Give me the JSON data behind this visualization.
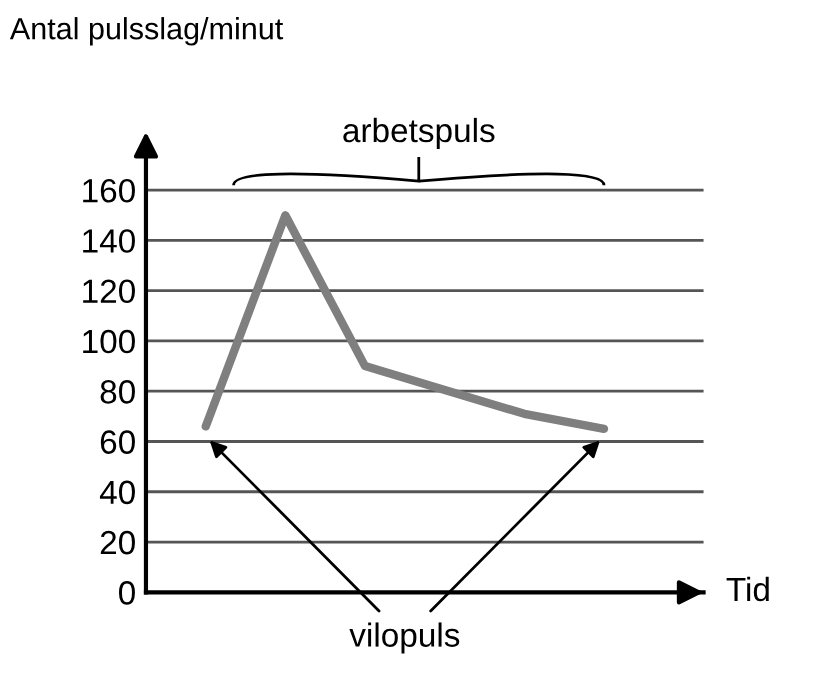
{
  "chart_data": {
    "type": "line",
    "ylabel": "Antal pulsslag/minut",
    "xlabel": "Tid",
    "categories": [
      null,
      null,
      null,
      null,
      null,
      null,
      null,
      null,
      null,
      null,
      null,
      null,
      null,
      null
    ],
    "series": [
      {
        "color": "#7f7f7f",
        "values": [
          null,
          66,
          null,
          150,
          null,
          90,
          null,
          null,
          null,
          71,
          null,
          65,
          null,
          null
        ]
      }
    ],
    "ylim": [
      0,
      180
    ],
    "yticks": [
      0,
      20,
      40,
      60,
      80,
      100,
      120,
      140,
      160
    ],
    "grid": "y",
    "marker": "none",
    "line_style": "solid",
    "annotations": [
      "arbetspuls",
      "vilopuls"
    ]
  }
}
